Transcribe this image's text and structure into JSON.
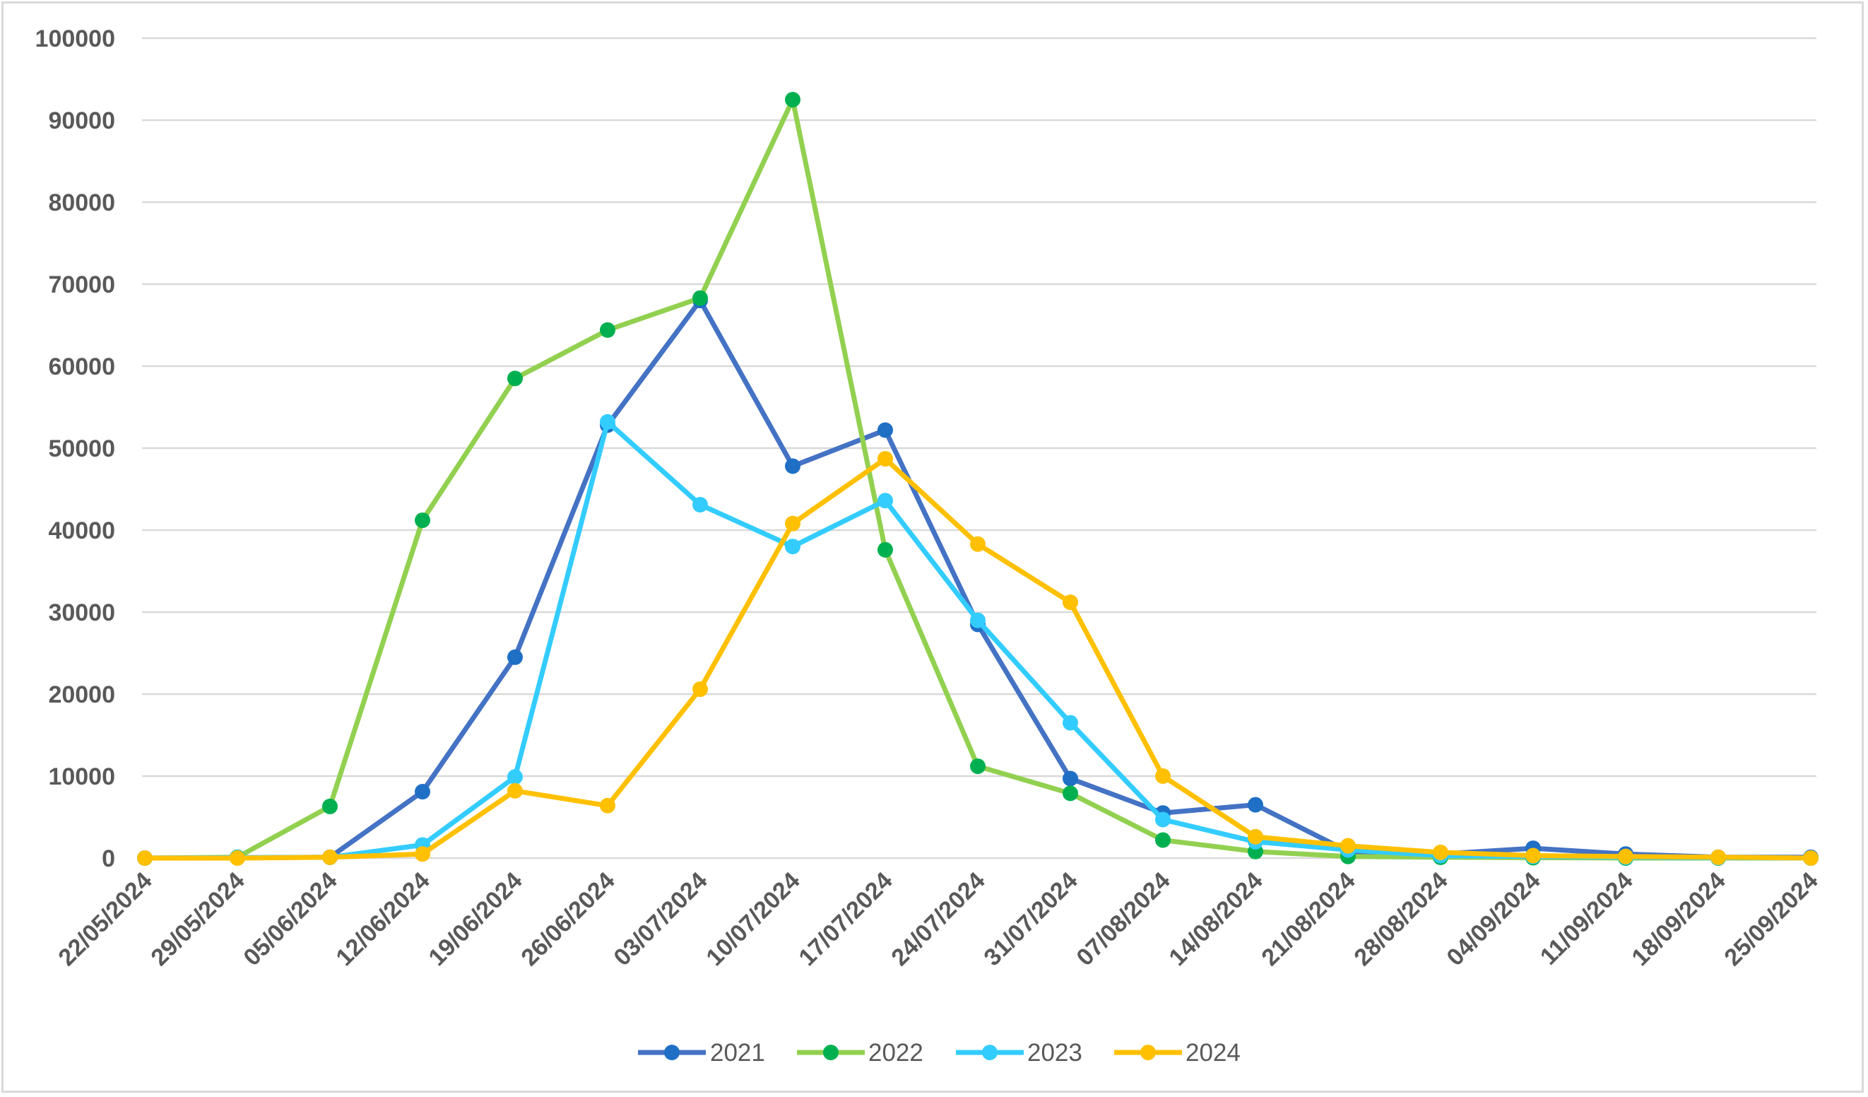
{
  "chart_data": {
    "type": "line",
    "title": "",
    "xlabel": "",
    "ylabel": "",
    "ylim": [
      0,
      100000
    ],
    "yticks": [
      0,
      10000,
      20000,
      30000,
      40000,
      50000,
      60000,
      70000,
      80000,
      90000,
      100000
    ],
    "grid": true,
    "legend_position": "bottom",
    "categories": [
      "22/05/2024",
      "29/05/2024",
      "05/06/2024",
      "12/06/2024",
      "19/06/2024",
      "26/06/2024",
      "03/07/2024",
      "10/07/2024",
      "17/07/2024",
      "24/07/2024",
      "31/07/2024",
      "07/08/2024",
      "14/08/2024",
      "21/08/2024",
      "28/08/2024",
      "04/09/2024",
      "11/09/2024",
      "18/09/2024",
      "25/09/2024"
    ],
    "series": [
      {
        "name": "2021",
        "line_color": "#4472c4",
        "marker_color": "#1f6fc5",
        "values": [
          0,
          50,
          100,
          8100,
          24500,
          52800,
          68000,
          47800,
          52200,
          28500,
          9700,
          5500,
          6500,
          800,
          500,
          1200,
          500,
          100,
          100
        ]
      },
      {
        "name": "2022",
        "line_color": "#92d050",
        "marker_color": "#00b050",
        "values": [
          0,
          100,
          6300,
          41200,
          58500,
          64400,
          68300,
          92500,
          37600,
          11200,
          7900,
          2200,
          800,
          200,
          100,
          50,
          0,
          0,
          0
        ]
      },
      {
        "name": "2023",
        "line_color": "#33ccff",
        "marker_color": "#33ccff",
        "values": [
          0,
          50,
          100,
          1600,
          9900,
          53200,
          43100,
          38000,
          43600,
          29000,
          16500,
          4700,
          2000,
          1000,
          300,
          200,
          100,
          50,
          0
        ]
      },
      {
        "name": "2024",
        "line_color": "#ffc000",
        "marker_color": "#ffc000",
        "values": [
          0,
          0,
          100,
          500,
          8200,
          6400,
          20600,
          40800,
          48700,
          38300,
          31200,
          10000,
          2600,
          1500,
          700,
          300,
          200,
          100,
          0
        ]
      }
    ]
  }
}
